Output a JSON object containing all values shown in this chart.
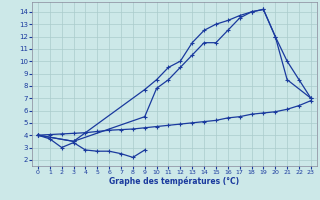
{
  "bg_color": "#cce8e8",
  "grid_color": "#aacccc",
  "line_color": "#1a3a9e",
  "xlabel": "Graphe des températures (°C)",
  "xlim": [
    -0.5,
    23.5
  ],
  "ylim": [
    1.5,
    14.8
  ],
  "yticks": [
    2,
    3,
    4,
    5,
    6,
    7,
    8,
    9,
    10,
    11,
    12,
    13,
    14
  ],
  "xticks": [
    0,
    1,
    2,
    3,
    4,
    5,
    6,
    7,
    8,
    9,
    10,
    11,
    12,
    13,
    14,
    15,
    16,
    17,
    18,
    19,
    20,
    21,
    22,
    23
  ],
  "line_a_x": [
    0,
    1,
    2,
    3,
    4,
    5,
    6,
    7,
    8,
    9
  ],
  "line_a_y": [
    4.0,
    3.7,
    3.0,
    3.4,
    2.8,
    2.7,
    2.7,
    2.5,
    2.2,
    2.8
  ],
  "line_b_x": [
    0,
    1,
    2,
    3,
    4,
    5,
    6,
    7,
    8,
    9,
    10,
    11,
    12,
    13,
    14,
    15,
    16,
    17,
    18,
    19,
    20,
    21,
    22,
    23
  ],
  "line_b_y": [
    4.0,
    4.05,
    4.1,
    4.15,
    4.2,
    4.3,
    4.4,
    4.45,
    4.5,
    4.6,
    4.7,
    4.8,
    4.9,
    5.0,
    5.1,
    5.2,
    5.4,
    5.5,
    5.7,
    5.8,
    5.9,
    6.1,
    6.4,
    6.8
  ],
  "line_c_x": [
    0,
    3,
    9,
    10,
    11,
    12,
    13,
    14,
    15,
    16,
    17,
    18,
    19,
    20,
    21,
    22,
    23
  ],
  "line_c_y": [
    4.0,
    3.5,
    7.7,
    8.5,
    9.5,
    10.0,
    11.5,
    12.5,
    13.0,
    13.3,
    13.7,
    14.0,
    14.2,
    12.0,
    10.0,
    8.5,
    7.0
  ],
  "line_d_x": [
    0,
    3,
    9,
    10,
    11,
    12,
    13,
    14,
    15,
    16,
    17,
    18,
    19,
    20,
    21,
    23
  ],
  "line_d_y": [
    4.0,
    3.5,
    5.5,
    7.8,
    8.5,
    9.5,
    10.5,
    11.5,
    11.5,
    12.5,
    13.5,
    14.0,
    14.2,
    12.0,
    8.5,
    7.0
  ],
  "marker_size": 3.5,
  "line_width": 0.9
}
